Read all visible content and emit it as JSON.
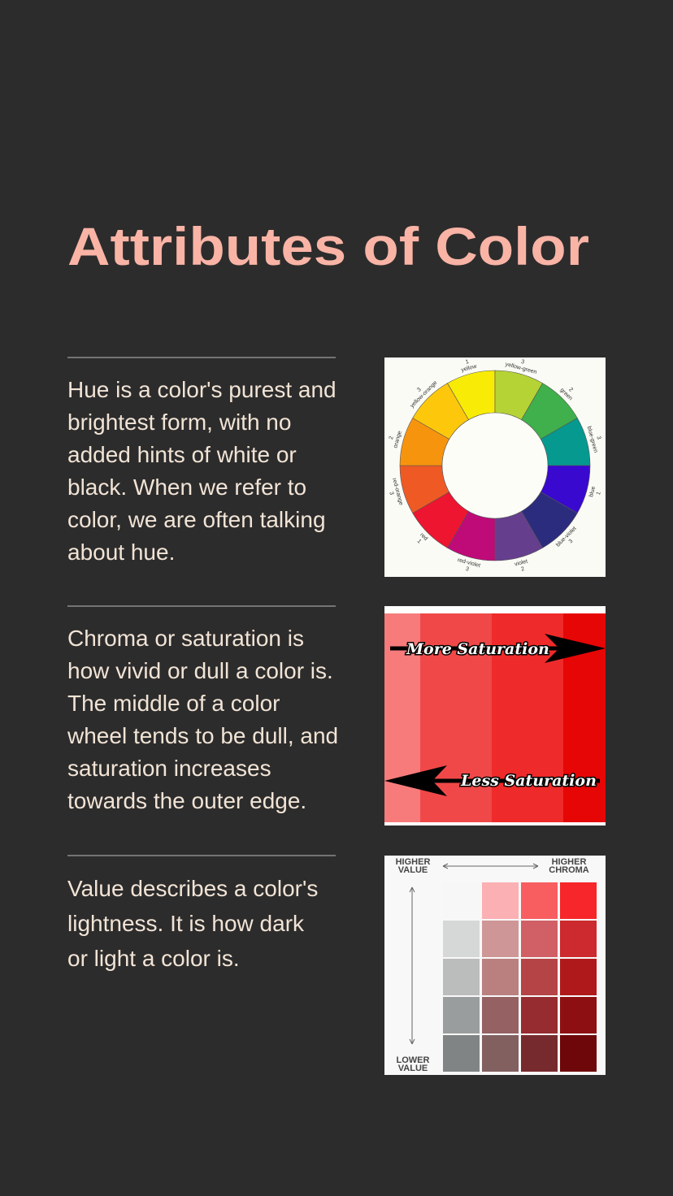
{
  "header": {
    "title": "Attributes of Color"
  },
  "sections": [
    {
      "lines": [
        "Hue is a color's purest and",
        "brightest form, with no",
        "added hints of white or",
        "black. When we refer to",
        "color, we are often talking",
        "about hue."
      ]
    },
    {
      "lines": [
        "Chroma or saturation is",
        "how vivid or dull a color is.",
        "The middle of a color",
        "wheel tends to be dull, and",
        "saturation increases",
        "towards the outer edge."
      ]
    },
    {
      "lines": [
        "Value describes a color's",
        "lightness. It is how dark",
        "or light a color is."
      ]
    }
  ],
  "hue_wheel": {
    "segments": [
      {
        "name": "yellow",
        "number": "1"
      },
      {
        "name": "yellow-green",
        "number": "3"
      },
      {
        "name": "green",
        "number": "2"
      },
      {
        "name": "blue-green",
        "number": "3"
      },
      {
        "name": "blue",
        "number": "1"
      },
      {
        "name": "blue-violet",
        "number": "3"
      },
      {
        "name": "violet",
        "number": "2"
      },
      {
        "name": "red-violet",
        "number": "3"
      },
      {
        "name": "red",
        "number": "1"
      },
      {
        "name": "red-orange",
        "number": "3"
      },
      {
        "name": "orange",
        "number": "2"
      },
      {
        "name": "yellow-orange",
        "number": "3"
      }
    ]
  },
  "saturation_image": {
    "more": "More Saturation",
    "less": "Less Saturation"
  },
  "value_image": {
    "higher_value": [
      "HIGHER",
      "VALUE"
    ],
    "higher_chroma": [
      "HIGHER",
      "CHROMA"
    ],
    "lower_value": [
      "LOWER",
      "VALUE"
    ]
  }
}
